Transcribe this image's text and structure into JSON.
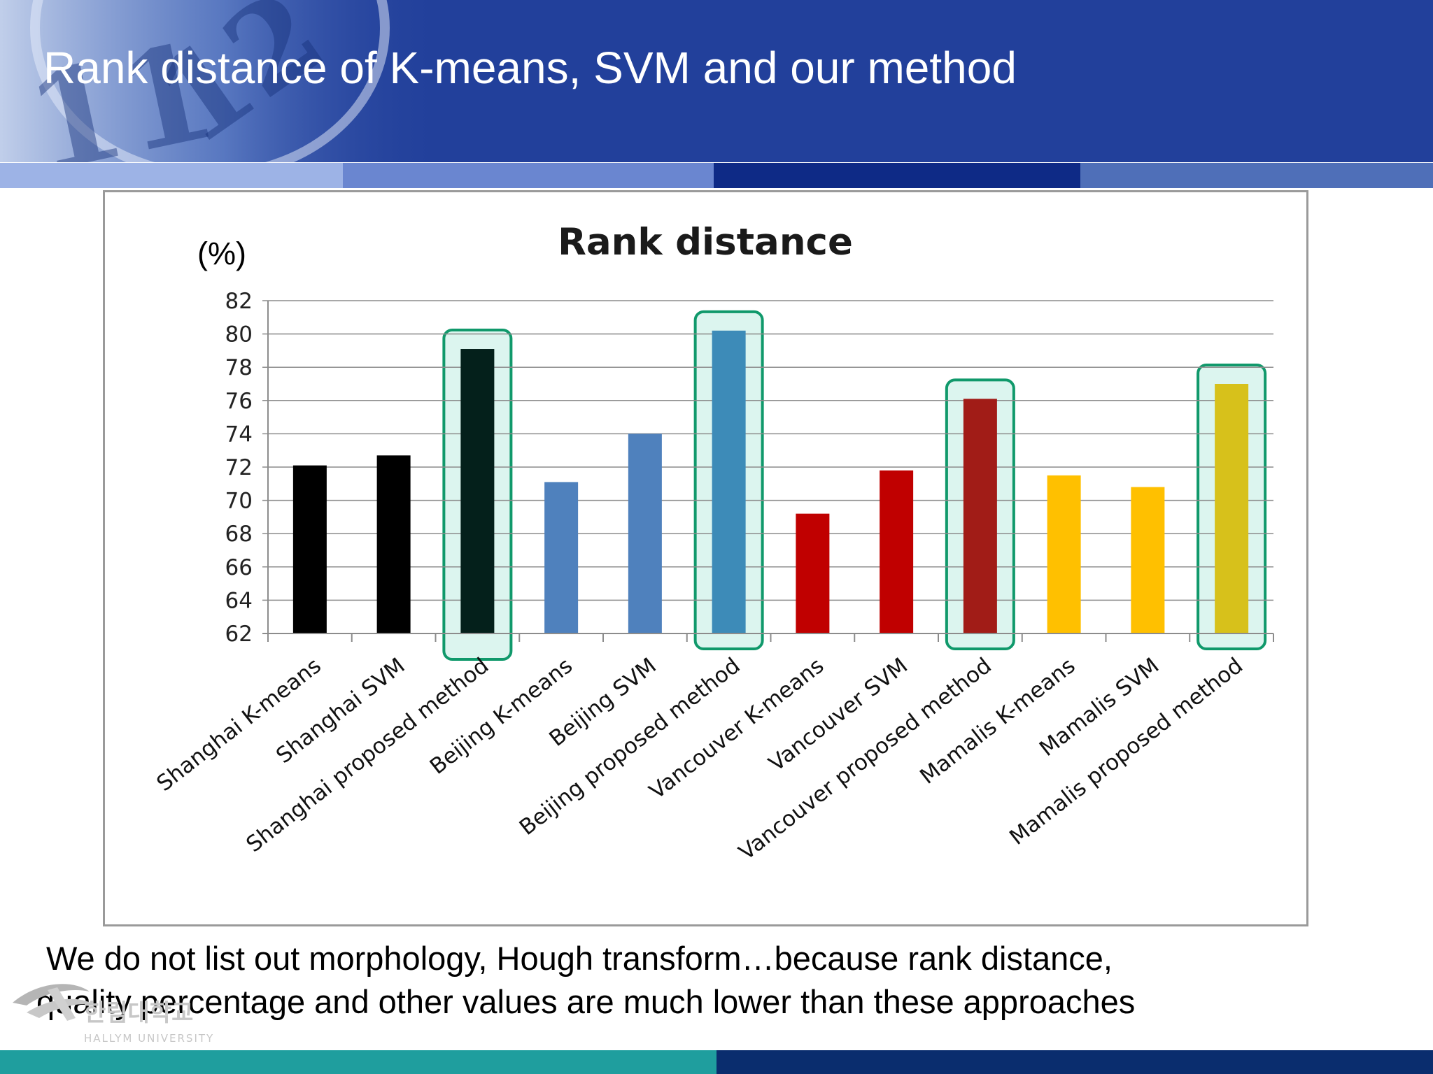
{
  "slide": {
    "title": "Rank distance of K-means, SVM and our method",
    "footnote_line1": "We do not list out morphology, Hough transform…because rank distance,",
    "footnote_line2": "quality percentage and other values are much lower than these approaches"
  },
  "colors": {
    "header": "#22409b",
    "shanghai": "#000000",
    "shanghai_proposed": "#04201b",
    "beijing": "#4f81bd",
    "beijing_proposed": "#3d8bb8",
    "vancouver": "#c00000",
    "vancouver_proposed": "#a11c17",
    "mamalis": "#ffc000",
    "mamalis_proposed": "#d7c11b",
    "highlight_border": "#10996b",
    "highlight_fill": "#dcf5ef"
  },
  "chart_data": {
    "type": "bar",
    "title": "Rank distance",
    "ylabel": "(%)",
    "xlabel": "",
    "ylim": [
      62,
      82
    ],
    "yticks": [
      "62",
      "64",
      "66",
      "68",
      "70",
      "72",
      "74",
      "76",
      "78",
      "80",
      "82"
    ],
    "grid": true,
    "categories": [
      "Shanghai K-means",
      "Shanghai SVM",
      "Shanghai proposed method",
      "Beijing K-means",
      "Beijing SVM",
      "Beijing proposed method",
      "Vancouver K-means",
      "Vancouver SVM",
      "Vancouver proposed method",
      "Mamalis K-means",
      "Mamalis SVM",
      "Mamalis proposed method"
    ],
    "values": [
      72.1,
      72.7,
      79.1,
      71.1,
      74.0,
      80.2,
      69.2,
      71.8,
      76.1,
      71.5,
      70.8,
      77.0
    ],
    "bar_colors": [
      "#000000",
      "#000000",
      "#04201b",
      "#4f81bd",
      "#4f81bd",
      "#3d8bb8",
      "#c00000",
      "#c00000",
      "#a11c17",
      "#ffc000",
      "#ffc000",
      "#d7c11b"
    ],
    "highlighted": [
      "Shanghai proposed method",
      "Beijing proposed method",
      "Vancouver proposed method",
      "Mamalis proposed method"
    ]
  }
}
